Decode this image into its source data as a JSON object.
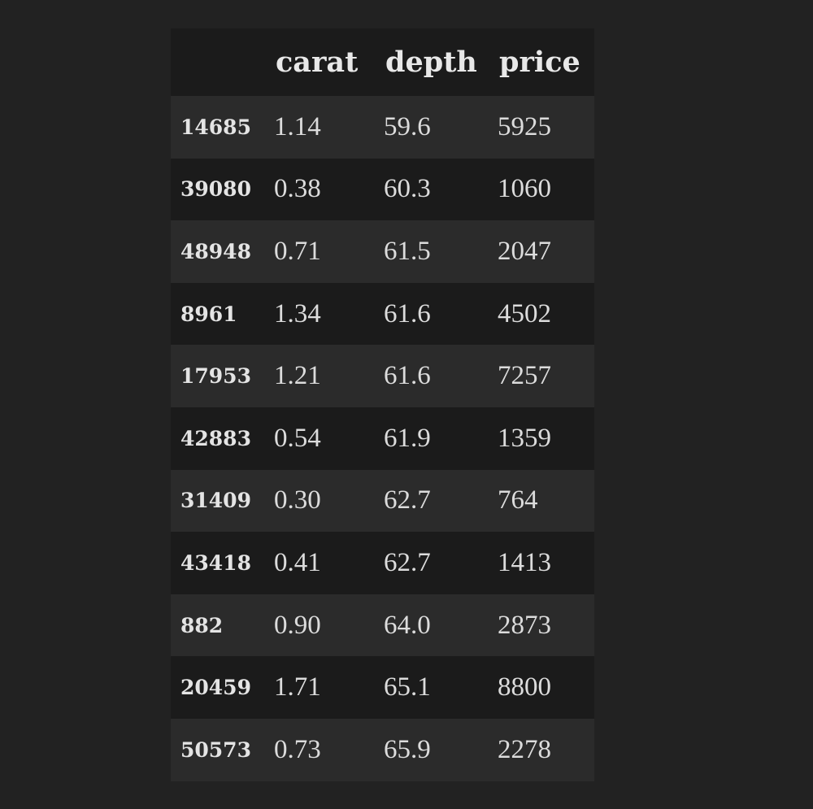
{
  "table": {
    "columns": [
      "carat",
      "depth",
      "price"
    ],
    "rows": [
      {
        "index": "14685",
        "carat": "1.14",
        "depth": "59.6",
        "price": "5925"
      },
      {
        "index": "39080",
        "carat": "0.38",
        "depth": "60.3",
        "price": "1060"
      },
      {
        "index": "48948",
        "carat": "0.71",
        "depth": "61.5",
        "price": "2047"
      },
      {
        "index": "8961",
        "carat": "1.34",
        "depth": "61.6",
        "price": "4502"
      },
      {
        "index": "17953",
        "carat": "1.21",
        "depth": "61.6",
        "price": "7257"
      },
      {
        "index": "42883",
        "carat": "0.54",
        "depth": "61.9",
        "price": "1359"
      },
      {
        "index": "31409",
        "carat": "0.30",
        "depth": "62.7",
        "price": "764"
      },
      {
        "index": "43418",
        "carat": "0.41",
        "depth": "62.7",
        "price": "1413"
      },
      {
        "index": "882",
        "carat": "0.90",
        "depth": "64.0",
        "price": "2873"
      },
      {
        "index": "20459",
        "carat": "1.71",
        "depth": "65.1",
        "price": "8800"
      },
      {
        "index": "50573",
        "carat": "0.73",
        "depth": "65.9",
        "price": "2278"
      }
    ]
  },
  "colors": {
    "page_background": "#222222",
    "header_background": "#1b1b1b",
    "row_odd_background": "#2b2b2b",
    "row_even_background": "#1b1b1b",
    "text": "#e6e6e6"
  }
}
